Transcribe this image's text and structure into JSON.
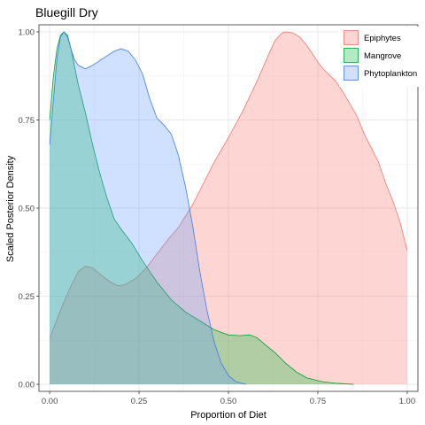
{
  "chart_data": {
    "type": "area",
    "title": "Bluegill Dry",
    "xlabel": "Proportion of Diet",
    "ylabel": "Scaled Posterior Density",
    "xlim": [
      -0.03,
      1.03
    ],
    "ylim": [
      -0.02,
      1.02
    ],
    "x_ticks": [
      "0.00",
      "0.25",
      "0.50",
      "0.75",
      "1.00"
    ],
    "y_ticks": [
      "0.00",
      "0.25",
      "0.50",
      "0.75",
      "1.00"
    ],
    "grid": true,
    "legend_position": "top-right",
    "series": [
      {
        "name": "Epiphytes",
        "fill": "#f8766d",
        "stroke": "#f8766d",
        "points": [
          [
            0.0,
            0.13
          ],
          [
            0.03,
            0.21
          ],
          [
            0.06,
            0.28
          ],
          [
            0.08,
            0.32
          ],
          [
            0.1,
            0.335
          ],
          [
            0.12,
            0.33
          ],
          [
            0.15,
            0.305
          ],
          [
            0.17,
            0.29
          ],
          [
            0.19,
            0.28
          ],
          [
            0.21,
            0.282
          ],
          [
            0.24,
            0.3
          ],
          [
            0.27,
            0.33
          ],
          [
            0.3,
            0.37
          ],
          [
            0.33,
            0.41
          ],
          [
            0.36,
            0.445
          ],
          [
            0.4,
            0.51
          ],
          [
            0.43,
            0.57
          ],
          [
            0.46,
            0.63
          ],
          [
            0.5,
            0.7
          ],
          [
            0.54,
            0.775
          ],
          [
            0.58,
            0.86
          ],
          [
            0.61,
            0.93
          ],
          [
            0.63,
            0.975
          ],
          [
            0.65,
            0.997
          ],
          [
            0.66,
            1.0
          ],
          [
            0.68,
            0.997
          ],
          [
            0.7,
            0.985
          ],
          [
            0.72,
            0.96
          ],
          [
            0.74,
            0.93
          ],
          [
            0.76,
            0.9
          ],
          [
            0.78,
            0.88
          ],
          [
            0.8,
            0.86
          ],
          [
            0.82,
            0.83
          ],
          [
            0.84,
            0.795
          ],
          [
            0.86,
            0.76
          ],
          [
            0.88,
            0.71
          ],
          [
            0.9,
            0.67
          ],
          [
            0.92,
            0.63
          ],
          [
            0.94,
            0.57
          ],
          [
            0.96,
            0.52
          ],
          [
            0.98,
            0.46
          ],
          [
            1.0,
            0.38
          ]
        ]
      },
      {
        "name": "Mangrove",
        "fill": "#00ba38",
        "stroke": "#00a032",
        "points": [
          [
            0.0,
            0.75
          ],
          [
            0.01,
            0.87
          ],
          [
            0.02,
            0.95
          ],
          [
            0.03,
            0.99
          ],
          [
            0.04,
            1.0
          ],
          [
            0.05,
            0.99
          ],
          [
            0.06,
            0.95
          ],
          [
            0.08,
            0.85
          ],
          [
            0.1,
            0.77
          ],
          [
            0.12,
            0.68
          ],
          [
            0.14,
            0.6
          ],
          [
            0.16,
            0.53
          ],
          [
            0.18,
            0.47
          ],
          [
            0.2,
            0.44
          ],
          [
            0.23,
            0.4
          ],
          [
            0.26,
            0.35
          ],
          [
            0.3,
            0.29
          ],
          [
            0.34,
            0.24
          ],
          [
            0.38,
            0.205
          ],
          [
            0.42,
            0.18
          ],
          [
            0.46,
            0.155
          ],
          [
            0.5,
            0.14
          ],
          [
            0.53,
            0.138
          ],
          [
            0.56,
            0.14
          ],
          [
            0.58,
            0.132
          ],
          [
            0.6,
            0.115
          ],
          [
            0.63,
            0.09
          ],
          [
            0.66,
            0.06
          ],
          [
            0.69,
            0.035
          ],
          [
            0.72,
            0.018
          ],
          [
            0.76,
            0.008
          ],
          [
            0.8,
            0.003
          ],
          [
            0.85,
            0.0
          ]
        ]
      },
      {
        "name": "Phytoplankton",
        "fill": "#619cff",
        "stroke": "#3f7de8",
        "points": [
          [
            0.0,
            0.68
          ],
          [
            0.01,
            0.8
          ],
          [
            0.02,
            0.92
          ],
          [
            0.03,
            0.985
          ],
          [
            0.04,
            1.0
          ],
          [
            0.05,
            0.985
          ],
          [
            0.06,
            0.95
          ],
          [
            0.07,
            0.92
          ],
          [
            0.08,
            0.905
          ],
          [
            0.1,
            0.895
          ],
          [
            0.12,
            0.905
          ],
          [
            0.15,
            0.925
          ],
          [
            0.18,
            0.945
          ],
          [
            0.2,
            0.952
          ],
          [
            0.22,
            0.945
          ],
          [
            0.24,
            0.92
          ],
          [
            0.26,
            0.88
          ],
          [
            0.28,
            0.81
          ],
          [
            0.3,
            0.755
          ],
          [
            0.32,
            0.735
          ],
          [
            0.34,
            0.71
          ],
          [
            0.36,
            0.65
          ],
          [
            0.38,
            0.56
          ],
          [
            0.4,
            0.45
          ],
          [
            0.42,
            0.32
          ],
          [
            0.44,
            0.21
          ],
          [
            0.46,
            0.12
          ],
          [
            0.48,
            0.06
          ],
          [
            0.5,
            0.025
          ],
          [
            0.52,
            0.008
          ],
          [
            0.55,
            0.0
          ]
        ]
      }
    ]
  }
}
